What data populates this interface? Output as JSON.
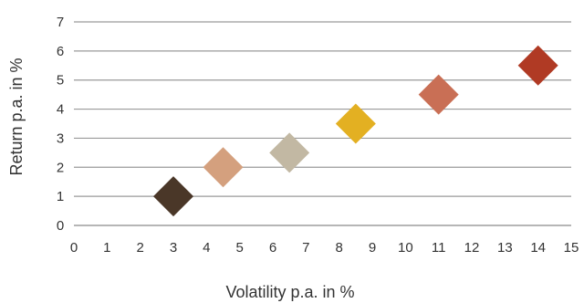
{
  "chart_data": {
    "type": "scatter",
    "xlabel": "Volatility p.a. in %",
    "ylabel": "Return p.a. in %",
    "xlim": [
      0,
      15
    ],
    "ylim": [
      0,
      7
    ],
    "x_ticks": [
      "0",
      "1",
      "2",
      "3",
      "4",
      "5",
      "6",
      "7",
      "8",
      "9",
      "10",
      "11",
      "12",
      "13",
      "14",
      "15"
    ],
    "y_ticks": [
      "0",
      "1",
      "2",
      "3",
      "4",
      "5",
      "6",
      "7"
    ],
    "grid": "horizontal",
    "marker": "diamond",
    "points": [
      {
        "x": 3,
        "y": 1,
        "color": "#4a3728"
      },
      {
        "x": 4.5,
        "y": 2,
        "color": "#d4a07e"
      },
      {
        "x": 6.5,
        "y": 2.5,
        "color": "#c2b8a3"
      },
      {
        "x": 8.5,
        "y": 3.5,
        "color": "#e3b022"
      },
      {
        "x": 11,
        "y": 4.5,
        "color": "#c96f55"
      },
      {
        "x": 14,
        "y": 5.5,
        "color": "#b03a24"
      }
    ]
  }
}
